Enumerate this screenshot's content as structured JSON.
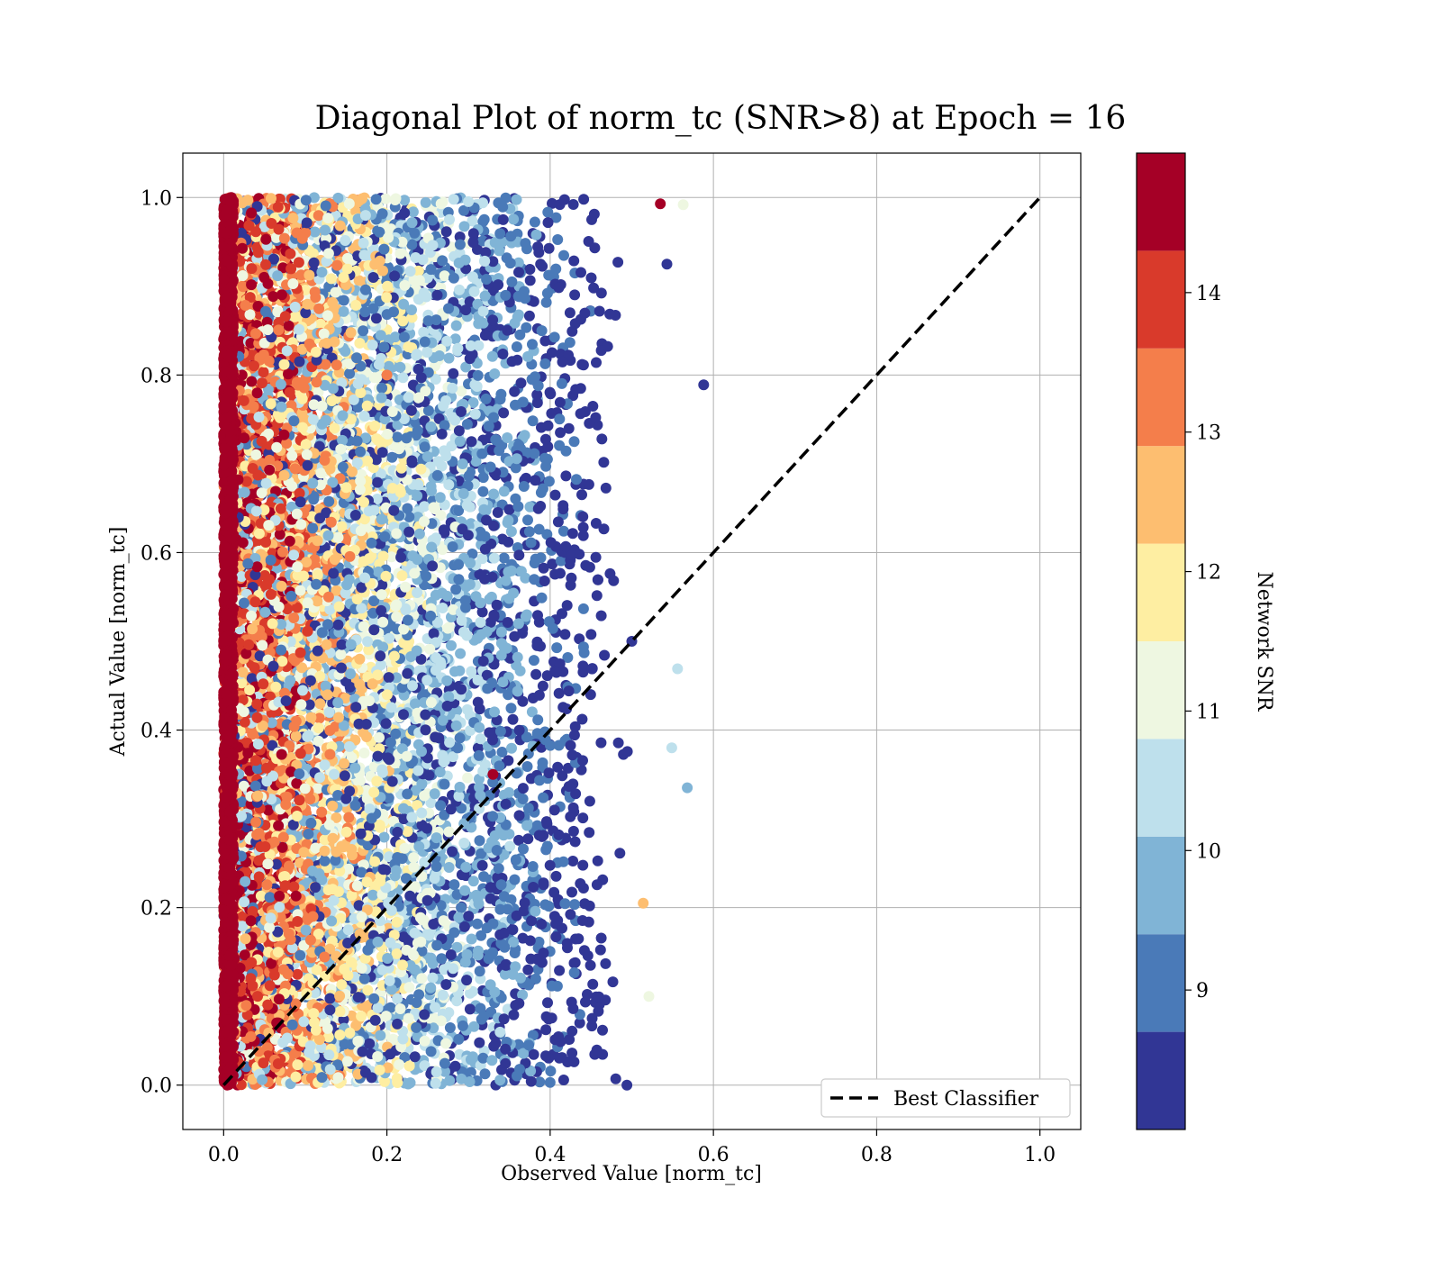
{
  "chart_data": {
    "type": "scatter",
    "title": "Diagonal Plot of norm_tc (SNR>8) at Epoch = 16",
    "xlabel": "Observed Value [norm_tc]",
    "ylabel": "Actual Value [norm_tc]",
    "xlim": [
      -0.05,
      1.05
    ],
    "ylim": [
      -0.05,
      1.05
    ],
    "xticks": [
      "0.0",
      "0.2",
      "0.4",
      "0.6",
      "0.8",
      "1.0"
    ],
    "yticks": [
      "0.0",
      "0.2",
      "0.4",
      "0.6",
      "0.8",
      "1.0"
    ],
    "grid": true,
    "legend": {
      "position": "lower-right",
      "entries": [
        "Best Classifier"
      ]
    },
    "reference_line": {
      "name": "Best Classifier",
      "style": "dashed",
      "color": "#000000",
      "x": [
        0,
        1
      ],
      "y": [
        0,
        1
      ]
    },
    "colorbar": {
      "label": "Network SNR",
      "range": [
        8,
        15
      ],
      "ticks": [
        "9",
        "10",
        "11",
        "12",
        "13",
        "14"
      ],
      "bands": [
        {
          "from": 8.0,
          "to": 8.7,
          "color": "#313695"
        },
        {
          "from": 8.7,
          "to": 9.4,
          "color": "#4a7ab8"
        },
        {
          "from": 9.4,
          "to": 10.1,
          "color": "#80b4d6"
        },
        {
          "from": 10.1,
          "to": 10.8,
          "color": "#bee0ec"
        },
        {
          "from": 10.8,
          "to": 11.5,
          "color": "#eef7e1"
        },
        {
          "from": 11.5,
          "to": 12.2,
          "color": "#feeea2"
        },
        {
          "from": 12.2,
          "to": 12.9,
          "color": "#fdbe70"
        },
        {
          "from": 12.9,
          "to": 13.6,
          "color": "#f47e4b"
        },
        {
          "from": 13.6,
          "to": 14.3,
          "color": "#d93a2b"
        },
        {
          "from": 14.3,
          "to": 15.0,
          "color": "#a50026"
        }
      ]
    },
    "series": [
      {
        "representative_points": [
          {
            "x": 0.535,
            "y": 0.993,
            "snr": 14.6
          },
          {
            "x": 0.563,
            "y": 0.992,
            "snr": 11.2
          },
          {
            "x": 0.543,
            "y": 0.925,
            "snr": 8.2
          },
          {
            "x": 0.588,
            "y": 0.789,
            "snr": 8.2
          },
          {
            "x": 0.556,
            "y": 0.469,
            "snr": 10.4
          },
          {
            "x": 0.549,
            "y": 0.38,
            "snr": 10.4
          },
          {
            "x": 0.568,
            "y": 0.335,
            "snr": 9.6
          },
          {
            "x": 0.514,
            "y": 0.205,
            "snr": 12.6
          },
          {
            "x": 0.521,
            "y": 0.1,
            "snr": 11.2
          },
          {
            "x": 0.494,
            "y": 0.0,
            "snr": 8.2
          },
          {
            "x": 0.5,
            "y": 0.5,
            "snr": 8.2
          },
          {
            "x": 0.33,
            "y": 0.35,
            "snr": 14.6
          },
          {
            "x": 0.2,
            "y": 0.8,
            "snr": 13.2
          },
          {
            "x": 0.0,
            "y": 0.5,
            "snr": 14.6
          }
        ]
      }
    ]
  }
}
